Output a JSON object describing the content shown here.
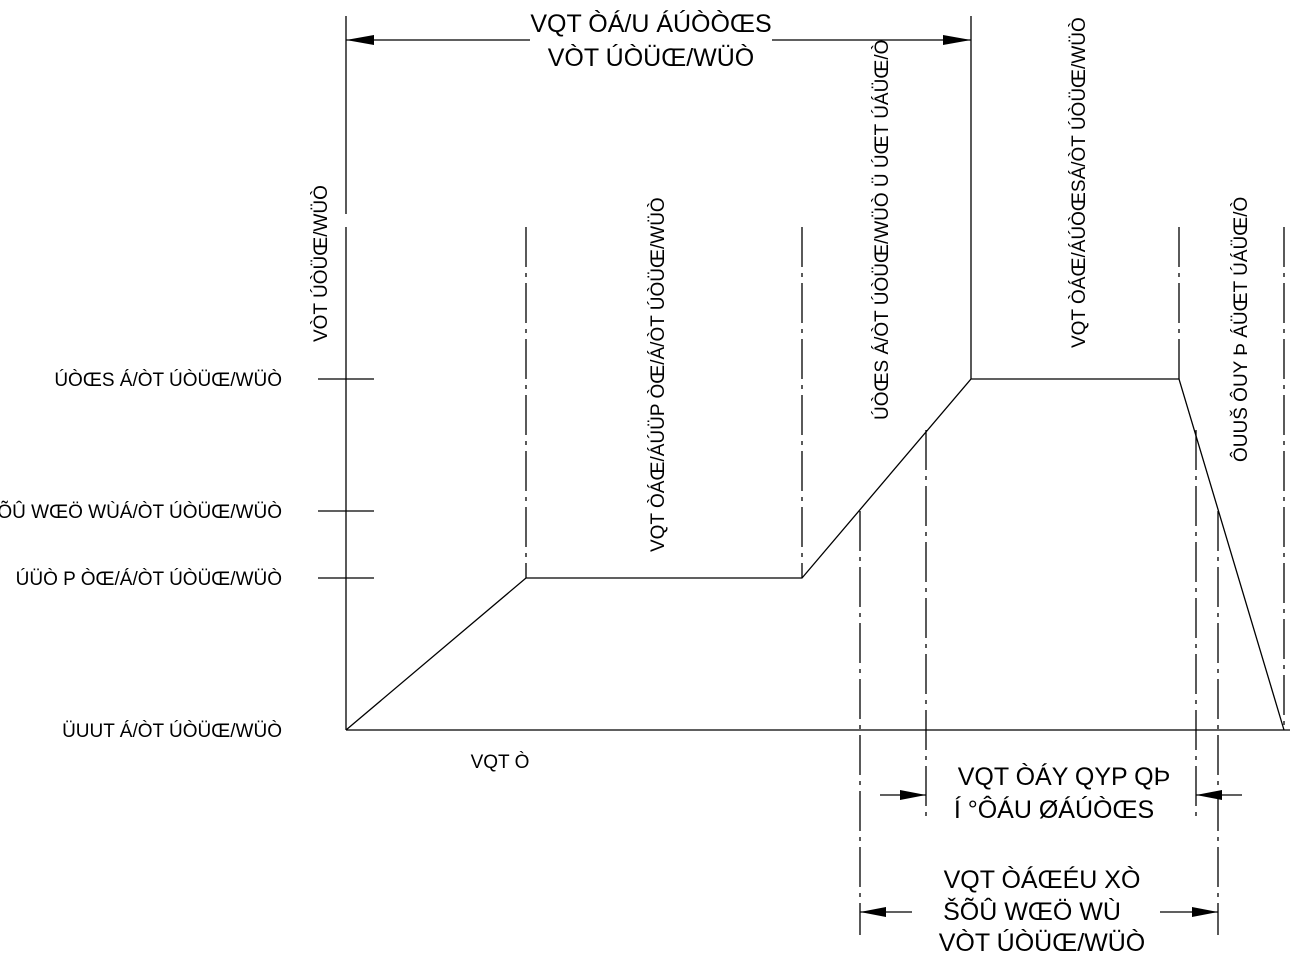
{
  "labels": {
    "top_span_line1": "VQT ÒÁ/U ÁÚÒÒŒS",
    "top_span_line2": "VÒT ÚÒÜŒ/WÜÒ",
    "y_start": "VÒT ÚÒÜŒ/WÜÒ",
    "soak": "VQT ÒÁŒ/ÁÚÜP ÒŒ/Á/ÒT ÚÒÜŒ/WÜÒ",
    "ramp_phase": "ÚÒŒS Á/ÒT ÚÒÜŒ/WÜÒ Ü ÚŒT ÚÁÜŒ/Ò",
    "peak_phase": "VQT ÒÁŒ/ÁÚÒŒSÁ/ÒT ÚÒÜŒ/WÜÒ",
    "cool_phase": "ÔUUŠ ÔUY Þ ÁÜŒT ÚÁÜŒ/Ò",
    "peak_level": "ÚÒŒS Á/ÒT ÚÒÜŒ/WÜÒ",
    "liquidus_level": "ŠÕÛ WŒÖ WÙÁ/ÒT ÚÒÜŒ/WÜÒ",
    "soak_level": "ÚÜÒ P ÒŒ/Á/ÒT ÚÒÜŒ/WÜÒ",
    "room_level": "ÜUUT Á/ÒT ÚÒÜŒ/WÜÒ",
    "time_axis": "VQT Ò",
    "window_line1": "VQT ÒÁY QYP QÞ",
    "window_line2": "Í °ÔÁU ØÁÚÒŒS",
    "above_line1": "VQT ÒÁŒÉU XÒ",
    "above_line2": "ŠÕÛ WŒÖ WÙ",
    "above_line3": "VÒT ÚÒÜŒ/WÜÒ"
  }
}
